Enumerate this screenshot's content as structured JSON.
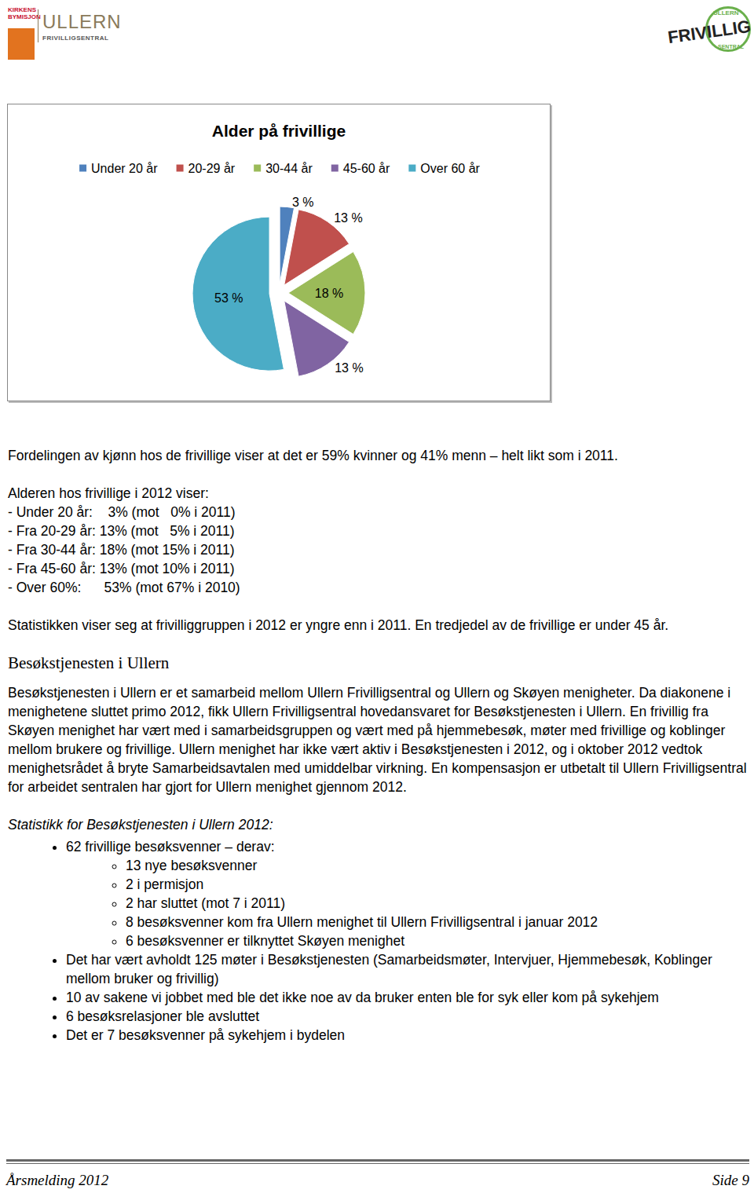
{
  "header": {
    "left_logo": {
      "org": [
        "KIRKENS",
        "BYMISJON"
      ],
      "name": "ULLERN",
      "sub": "FRIVILLIGSENTRAL"
    },
    "right_logo": {
      "ring_top": "ULLERN",
      "name": "FRIVILLIG",
      "ring_bottom": "SENTRAL"
    }
  },
  "chart_data": {
    "type": "pie",
    "title": "Alder på frivillige",
    "categories": [
      "Under 20 år",
      "20-29 år",
      "30-44 år",
      "45-60 år",
      "Over 60 år"
    ],
    "values": [
      3,
      13,
      18,
      13,
      53
    ],
    "value_labels": [
      "3 %",
      "13 %",
      "18 %",
      "13 %",
      "53 %"
    ],
    "colors": [
      "#4f81bd",
      "#c0504d",
      "#9bbb59",
      "#8064a2",
      "#4bacc6"
    ],
    "legend": "top",
    "data_labels": true
  },
  "intro": "Fordelingen av kjønn hos de frivillige viser at det er 59% kvinner og 41% menn – helt likt som i 2011.",
  "age_heading": "Alderen hos frivillige i 2012 viser:",
  "age_lines": [
    "- Under 20 år:    3% (mot   0% i 2011)",
    "- Fra 20-29 år: 13% (mot   5% i 2011)",
    "- Fra 30-44 år: 18% (mot 15% i 2011)",
    "- Fra 45-60 år: 13% (mot 10% i 2011)",
    "- Over 60%:      53% (mot 67% i 2010)"
  ],
  "conclusion": "Statistikken viser seg at frivilliggruppen i 2012 er yngre enn i 2011. En tredjedel av de frivillige er under 45 år.",
  "section_heading": "Besøkstjenesten i Ullern",
  "section_text": "Besøkstjenesten i Ullern er et samarbeid mellom Ullern Frivilligsentral og Ullern og Skøyen menigheter. Da diakonene i menighetene sluttet primo 2012, fikk Ullern Frivilligsentral hovedansvaret for Besøkstjenesten i Ullern. En frivillig fra Skøyen menighet har vært med i samarbeidsgruppen og vært med på hjemmebesøk, møter med frivillige og koblinger mellom brukere og frivillige. Ullern menighet har ikke vært aktiv i Besøkstjenesten i 2012, og i oktober 2012 vedtok menighetsrådet å bryte Samarbeidsavtalen med umiddelbar virkning. En kompensasjon er utbetalt til Ullern Frivilligsentral for arbeidet sentralen har gjort for Ullern menighet gjennom 2012.",
  "stats_heading": "Statistikk for Besøkstjenesten i Ullern 2012:",
  "stats": [
    {
      "text": "62 frivillige besøksvenner – derav:",
      "items": [
        "13 nye besøksvenner",
        "2 i permisjon",
        "2 har sluttet (mot 7 i 2011)",
        "8 besøksvenner kom fra Ullern menighet til Ullern Frivilligsentral i januar 2012",
        "6 besøksvenner er tilknyttet Skøyen menighet"
      ]
    },
    {
      "text": "Det har vært avholdt 125 møter i Besøkstjenesten (Samarbeidsmøter, Intervjuer, Hjemmebesøk, Koblinger mellom bruker og frivillig)",
      "items": []
    },
    {
      "text": "10 av sakene vi jobbet med ble det ikke noe av da bruker enten ble for syk eller kom på sykehjem",
      "items": []
    },
    {
      "text": "6 besøksrelasjoner ble avsluttet",
      "items": []
    },
    {
      "text": "Det er 7 besøksvenner på sykehjem i bydelen",
      "items": []
    }
  ],
  "footer": {
    "left": "Årsmelding 2012",
    "right": "Side 9"
  }
}
